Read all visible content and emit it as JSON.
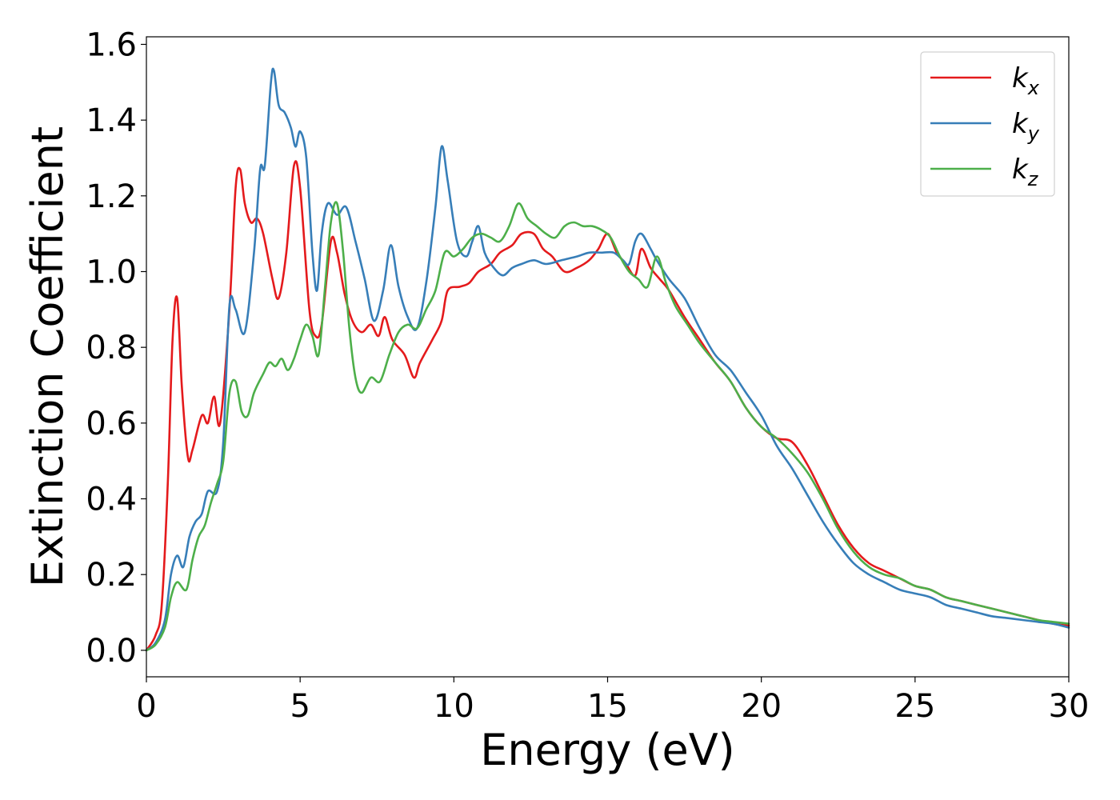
{
  "chart_data": {
    "type": "line",
    "title": "",
    "xlabel": "Energy (eV)",
    "ylabel": "Extinction Coefficient",
    "xlim": [
      0,
      30
    ],
    "ylim": [
      -0.07,
      1.62
    ],
    "xticks": [
      0,
      5,
      10,
      15,
      20,
      25,
      30
    ],
    "xtick_labels": [
      "0",
      "5",
      "10",
      "15",
      "20",
      "25",
      "30"
    ],
    "yticks": [
      0.0,
      0.2,
      0.4,
      0.6,
      0.8,
      1.0,
      1.2,
      1.4,
      1.6
    ],
    "ytick_labels": [
      "0.0",
      "0.2",
      "0.4",
      "0.6",
      "0.8",
      "1.0",
      "1.2",
      "1.4",
      "1.6"
    ],
    "grid": false,
    "legend_position": "top-right",
    "series": [
      {
        "name": "k_x",
        "label_base": "k",
        "label_sub": "x",
        "color": "#e41a1c",
        "points": [
          [
            0,
            0
          ],
          [
            0.3,
            0.04
          ],
          [
            0.5,
            0.12
          ],
          [
            0.7,
            0.45
          ],
          [
            0.85,
            0.82
          ],
          [
            1.0,
            0.93
          ],
          [
            1.15,
            0.7
          ],
          [
            1.35,
            0.51
          ],
          [
            1.5,
            0.53
          ],
          [
            1.8,
            0.62
          ],
          [
            2.0,
            0.6
          ],
          [
            2.2,
            0.67
          ],
          [
            2.4,
            0.6
          ],
          [
            2.7,
            0.9
          ],
          [
            2.9,
            1.22
          ],
          [
            3.05,
            1.27
          ],
          [
            3.2,
            1.18
          ],
          [
            3.4,
            1.13
          ],
          [
            3.6,
            1.14
          ],
          [
            3.8,
            1.1
          ],
          [
            4.1,
            0.98
          ],
          [
            4.3,
            0.93
          ],
          [
            4.55,
            1.05
          ],
          [
            4.8,
            1.28
          ],
          [
            5.0,
            1.22
          ],
          [
            5.3,
            0.9
          ],
          [
            5.5,
            0.83
          ],
          [
            5.7,
            0.86
          ],
          [
            6.0,
            1.08
          ],
          [
            6.2,
            1.05
          ],
          [
            6.45,
            0.94
          ],
          [
            6.7,
            0.87
          ],
          [
            7.0,
            0.84
          ],
          [
            7.3,
            0.86
          ],
          [
            7.55,
            0.83
          ],
          [
            7.75,
            0.88
          ],
          [
            8.0,
            0.82
          ],
          [
            8.4,
            0.78
          ],
          [
            8.7,
            0.72
          ],
          [
            8.9,
            0.76
          ],
          [
            9.3,
            0.82
          ],
          [
            9.6,
            0.87
          ],
          [
            9.8,
            0.95
          ],
          [
            10.2,
            0.96
          ],
          [
            10.5,
            0.97
          ],
          [
            10.8,
            1.0
          ],
          [
            11.2,
            1.02
          ],
          [
            11.5,
            1.05
          ],
          [
            11.9,
            1.07
          ],
          [
            12.2,
            1.1
          ],
          [
            12.6,
            1.1
          ],
          [
            12.9,
            1.06
          ],
          [
            13.2,
            1.04
          ],
          [
            13.6,
            1.0
          ],
          [
            14.0,
            1.01
          ],
          [
            14.4,
            1.03
          ],
          [
            14.7,
            1.06
          ],
          [
            15.0,
            1.1
          ],
          [
            15.3,
            1.05
          ],
          [
            15.6,
            1.02
          ],
          [
            15.9,
            0.99
          ],
          [
            16.1,
            1.06
          ],
          [
            16.4,
            1.01
          ],
          [
            16.7,
            0.98
          ],
          [
            17.0,
            0.95
          ],
          [
            17.5,
            0.88
          ],
          [
            18.0,
            0.82
          ],
          [
            18.5,
            0.76
          ],
          [
            19.0,
            0.71
          ],
          [
            19.5,
            0.64
          ],
          [
            20.0,
            0.59
          ],
          [
            20.5,
            0.56
          ],
          [
            21.0,
            0.55
          ],
          [
            21.5,
            0.49
          ],
          [
            22.0,
            0.41
          ],
          [
            22.5,
            0.33
          ],
          [
            23.0,
            0.27
          ],
          [
            23.5,
            0.23
          ],
          [
            24.0,
            0.21
          ],
          [
            24.5,
            0.19
          ],
          [
            25.0,
            0.17
          ],
          [
            25.5,
            0.16
          ],
          [
            26.0,
            0.14
          ],
          [
            26.5,
            0.13
          ],
          [
            27.0,
            0.12
          ],
          [
            27.5,
            0.11
          ],
          [
            28.0,
            0.1
          ],
          [
            28.5,
            0.09
          ],
          [
            29.0,
            0.08
          ],
          [
            29.5,
            0.07
          ],
          [
            30.0,
            0.065
          ]
        ]
      },
      {
        "name": "k_y",
        "label_base": "k",
        "label_sub": "y",
        "color": "#377eb8",
        "points": [
          [
            0,
            0
          ],
          [
            0.3,
            0.02
          ],
          [
            0.6,
            0.08
          ],
          [
            0.8,
            0.2
          ],
          [
            1.0,
            0.25
          ],
          [
            1.2,
            0.22
          ],
          [
            1.4,
            0.3
          ],
          [
            1.6,
            0.34
          ],
          [
            1.8,
            0.36
          ],
          [
            2.0,
            0.42
          ],
          [
            2.3,
            0.42
          ],
          [
            2.5,
            0.55
          ],
          [
            2.7,
            0.91
          ],
          [
            2.9,
            0.9
          ],
          [
            3.2,
            0.84
          ],
          [
            3.5,
            1.05
          ],
          [
            3.7,
            1.27
          ],
          [
            3.85,
            1.28
          ],
          [
            4.05,
            1.5
          ],
          [
            4.15,
            1.53
          ],
          [
            4.3,
            1.44
          ],
          [
            4.5,
            1.42
          ],
          [
            4.7,
            1.38
          ],
          [
            4.85,
            1.33
          ],
          [
            5.0,
            1.37
          ],
          [
            5.2,
            1.3
          ],
          [
            5.4,
            1.05
          ],
          [
            5.55,
            0.95
          ],
          [
            5.7,
            1.1
          ],
          [
            5.9,
            1.18
          ],
          [
            6.2,
            1.15
          ],
          [
            6.5,
            1.17
          ],
          [
            6.8,
            1.08
          ],
          [
            7.1,
            0.98
          ],
          [
            7.4,
            0.87
          ],
          [
            7.7,
            0.95
          ],
          [
            7.95,
            1.07
          ],
          [
            8.2,
            0.96
          ],
          [
            8.5,
            0.88
          ],
          [
            8.8,
            0.85
          ],
          [
            9.1,
            0.97
          ],
          [
            9.4,
            1.17
          ],
          [
            9.6,
            1.33
          ],
          [
            9.8,
            1.24
          ],
          [
            10.1,
            1.08
          ],
          [
            10.4,
            1.04
          ],
          [
            10.6,
            1.08
          ],
          [
            10.8,
            1.12
          ],
          [
            11.0,
            1.05
          ],
          [
            11.3,
            1.01
          ],
          [
            11.6,
            0.99
          ],
          [
            11.9,
            1.01
          ],
          [
            12.2,
            1.02
          ],
          [
            12.6,
            1.03
          ],
          [
            13.0,
            1.02
          ],
          [
            13.5,
            1.03
          ],
          [
            14.0,
            1.04
          ],
          [
            14.4,
            1.05
          ],
          [
            14.8,
            1.05
          ],
          [
            15.2,
            1.05
          ],
          [
            15.5,
            1.03
          ],
          [
            15.7,
            1.02
          ],
          [
            15.9,
            1.08
          ],
          [
            16.1,
            1.1
          ],
          [
            16.4,
            1.06
          ],
          [
            16.6,
            1.03
          ],
          [
            17.0,
            0.98
          ],
          [
            17.5,
            0.93
          ],
          [
            18.0,
            0.85
          ],
          [
            18.5,
            0.78
          ],
          [
            19.0,
            0.74
          ],
          [
            19.5,
            0.68
          ],
          [
            20.0,
            0.62
          ],
          [
            20.5,
            0.54
          ],
          [
            21.0,
            0.48
          ],
          [
            21.5,
            0.41
          ],
          [
            22.0,
            0.34
          ],
          [
            22.5,
            0.28
          ],
          [
            23.0,
            0.23
          ],
          [
            23.5,
            0.2
          ],
          [
            24.0,
            0.18
          ],
          [
            24.5,
            0.16
          ],
          [
            25.0,
            0.15
          ],
          [
            25.5,
            0.14
          ],
          [
            26.0,
            0.12
          ],
          [
            26.5,
            0.11
          ],
          [
            27.0,
            0.1
          ],
          [
            27.5,
            0.09
          ],
          [
            28.0,
            0.085
          ],
          [
            28.5,
            0.08
          ],
          [
            29.0,
            0.075
          ],
          [
            29.5,
            0.07
          ],
          [
            30.0,
            0.06
          ]
        ]
      },
      {
        "name": "k_z",
        "label_base": "k",
        "label_sub": "z",
        "color": "#4daf4a",
        "points": [
          [
            0,
            0
          ],
          [
            0.3,
            0.015
          ],
          [
            0.6,
            0.06
          ],
          [
            0.8,
            0.14
          ],
          [
            1.0,
            0.18
          ],
          [
            1.3,
            0.16
          ],
          [
            1.5,
            0.24
          ],
          [
            1.7,
            0.3
          ],
          [
            1.9,
            0.33
          ],
          [
            2.1,
            0.39
          ],
          [
            2.3,
            0.44
          ],
          [
            2.5,
            0.5
          ],
          [
            2.7,
            0.68
          ],
          [
            2.9,
            0.71
          ],
          [
            3.1,
            0.63
          ],
          [
            3.3,
            0.62
          ],
          [
            3.5,
            0.68
          ],
          [
            3.8,
            0.73
          ],
          [
            4.0,
            0.76
          ],
          [
            4.2,
            0.75
          ],
          [
            4.4,
            0.77
          ],
          [
            4.6,
            0.74
          ],
          [
            4.8,
            0.77
          ],
          [
            5.0,
            0.82
          ],
          [
            5.2,
            0.86
          ],
          [
            5.4,
            0.83
          ],
          [
            5.6,
            0.78
          ],
          [
            5.8,
            0.95
          ],
          [
            6.0,
            1.13
          ],
          [
            6.2,
            1.18
          ],
          [
            6.4,
            1.05
          ],
          [
            6.6,
            0.85
          ],
          [
            6.8,
            0.72
          ],
          [
            7.0,
            0.68
          ],
          [
            7.3,
            0.72
          ],
          [
            7.6,
            0.71
          ],
          [
            7.9,
            0.78
          ],
          [
            8.2,
            0.84
          ],
          [
            8.5,
            0.86
          ],
          [
            8.8,
            0.85
          ],
          [
            9.1,
            0.9
          ],
          [
            9.4,
            0.95
          ],
          [
            9.7,
            1.05
          ],
          [
            10.0,
            1.04
          ],
          [
            10.3,
            1.06
          ],
          [
            10.6,
            1.09
          ],
          [
            10.9,
            1.1
          ],
          [
            11.2,
            1.09
          ],
          [
            11.5,
            1.08
          ],
          [
            11.8,
            1.12
          ],
          [
            12.1,
            1.18
          ],
          [
            12.4,
            1.14
          ],
          [
            12.7,
            1.12
          ],
          [
            13.0,
            1.1
          ],
          [
            13.3,
            1.09
          ],
          [
            13.6,
            1.12
          ],
          [
            13.9,
            1.13
          ],
          [
            14.2,
            1.12
          ],
          [
            14.5,
            1.12
          ],
          [
            14.8,
            1.11
          ],
          [
            15.1,
            1.09
          ],
          [
            15.4,
            1.04
          ],
          [
            15.7,
            1.0
          ],
          [
            16.0,
            0.98
          ],
          [
            16.3,
            0.96
          ],
          [
            16.6,
            1.04
          ],
          [
            16.9,
            0.97
          ],
          [
            17.2,
            0.91
          ],
          [
            17.6,
            0.86
          ],
          [
            18.0,
            0.81
          ],
          [
            18.5,
            0.76
          ],
          [
            19.0,
            0.71
          ],
          [
            19.5,
            0.64
          ],
          [
            20.0,
            0.59
          ],
          [
            20.5,
            0.56
          ],
          [
            21.0,
            0.52
          ],
          [
            21.5,
            0.47
          ],
          [
            22.0,
            0.4
          ],
          [
            22.5,
            0.32
          ],
          [
            23.0,
            0.26
          ],
          [
            23.5,
            0.22
          ],
          [
            24.0,
            0.2
          ],
          [
            24.5,
            0.19
          ],
          [
            25.0,
            0.17
          ],
          [
            25.5,
            0.16
          ],
          [
            26.0,
            0.14
          ],
          [
            26.5,
            0.13
          ],
          [
            27.0,
            0.12
          ],
          [
            27.5,
            0.11
          ],
          [
            28.0,
            0.1
          ],
          [
            28.5,
            0.09
          ],
          [
            29.0,
            0.08
          ],
          [
            29.5,
            0.075
          ],
          [
            30.0,
            0.07
          ]
        ]
      }
    ]
  }
}
